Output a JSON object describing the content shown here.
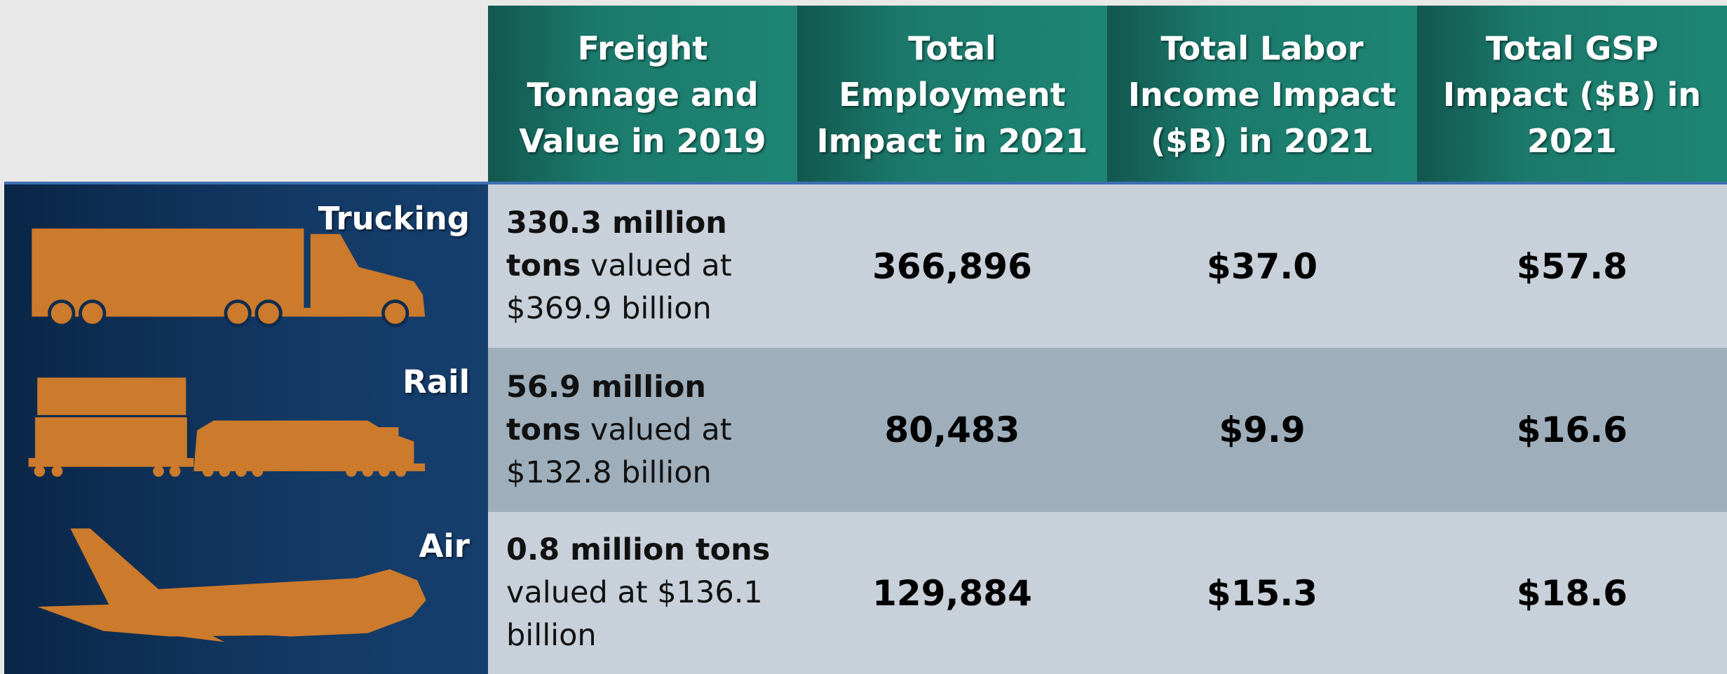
{
  "header": {
    "columns": [
      "Freight Tonnage and Value in 2019",
      "Total Employment Impact in 2021",
      "Total Labor Income Impact ($B) in 2021",
      "Total GSP Impact ($B) in 2021"
    ]
  },
  "table": {
    "rows": [
      {
        "mode": "Trucking",
        "tonnage_bold": "330.3 million tons",
        "tonnage_rest": "valued at $369.9 billion",
        "employment": "366,896",
        "labor_income": "$37.0",
        "gsp": "$57.8"
      },
      {
        "mode": "Rail",
        "tonnage_bold": "56.9 million tons",
        "tonnage_rest": "valued at $132.8 billion",
        "employment": "80,483",
        "labor_income": "$9.9",
        "gsp": "$16.6"
      },
      {
        "mode": "Air",
        "tonnage_bold": "0.8 million tons",
        "tonnage_rest": "valued at $136.1 billion",
        "employment": "129,884",
        "labor_income": "$15.3",
        "gsp": "$18.6"
      }
    ]
  }
}
